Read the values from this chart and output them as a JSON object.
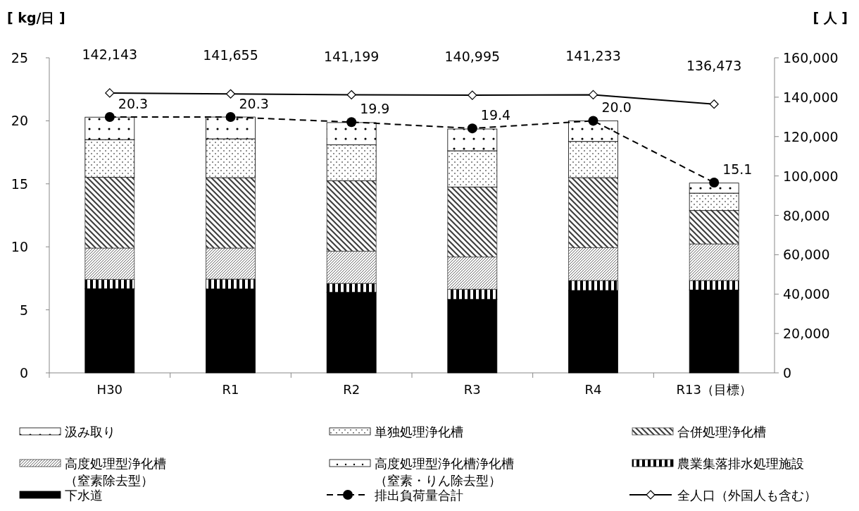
{
  "chart_data": {
    "type": "bar",
    "stacked": true,
    "ylabel": "[ kg/日 ]",
    "y2label": "[ 人 ]",
    "categories": [
      "H30",
      "R1",
      "R2",
      "R3",
      "R4",
      "R13（目標）"
    ],
    "ylim": [
      0,
      25
    ],
    "yticks": [
      0,
      5,
      10,
      15,
      20,
      25
    ],
    "y2lim": [
      0,
      160000
    ],
    "y2ticks": [
      {
        "value": 0,
        "label": "0"
      },
      {
        "value": 20000,
        "label": "20,000"
      },
      {
        "value": 40000,
        "label": "40,000"
      },
      {
        "value": 60000,
        "label": "60,000"
      },
      {
        "value": 80000,
        "label": "80,000"
      },
      {
        "value": 100000,
        "label": "100,000"
      },
      {
        "value": 120000,
        "label": "120,000"
      },
      {
        "value": 140000,
        "label": "140,000"
      },
      {
        "value": 160000,
        "label": "160,000"
      }
    ],
    "grid": false,
    "legend": "bottom",
    "series": [
      {
        "name": "下水道",
        "color": "#000000",
        "values": [
          6.67,
          6.66,
          6.39,
          5.83,
          6.54,
          6.58
        ]
      },
      {
        "name": "農業集落排水処理施設",
        "color": "#000000",
        "values": [
          0.75,
          0.78,
          0.71,
          0.81,
          0.79,
          0.75
        ]
      },
      {
        "name": "高度処理型浄化槽浄化槽（窒素・りん除去型）",
        "color": "#000000",
        "values": [
          0,
          0,
          0,
          0,
          0,
          0
        ]
      },
      {
        "name": "高度処理型浄化槽（窒素除去型）",
        "color": "#404040",
        "values": [
          2.48,
          2.46,
          2.56,
          2.55,
          2.61,
          2.9
        ]
      },
      {
        "name": "合併処理浄化槽",
        "color": "#404040",
        "values": [
          5.61,
          5.59,
          5.59,
          5.56,
          5.55,
          2.65
        ]
      },
      {
        "name": "単独処理浄化槽",
        "color": "#000000",
        "values": [
          3.0,
          3.08,
          2.85,
          2.87,
          2.87,
          1.38
        ]
      },
      {
        "name": "汲み取り",
        "color": "#000000",
        "values": [
          1.78,
          1.73,
          1.76,
          1.73,
          1.64,
          0.8
        ]
      },
      {
        "name": "排出負荷量合計",
        "type": "line",
        "color": "#000000",
        "marker": "circle",
        "line_style": "dashed",
        "values": [
          20.3,
          20.3,
          19.9,
          19.4,
          20.0,
          15.1
        ],
        "value_labels": [
          "20.3",
          "20.3",
          "19.9",
          "19.4",
          "20.0",
          "15.1"
        ]
      },
      {
        "name": "全人口（外国人も含む）",
        "type": "line",
        "axis": "y2",
        "color": "#000000",
        "marker": "diamond",
        "line_style": "solid",
        "values": [
          142143,
          141655,
          141199,
          140995,
          141233,
          136473
        ],
        "value_labels": [
          "142,143",
          "141,655",
          "141,199",
          "140,995",
          "141,233",
          "136,473"
        ]
      }
    ]
  }
}
